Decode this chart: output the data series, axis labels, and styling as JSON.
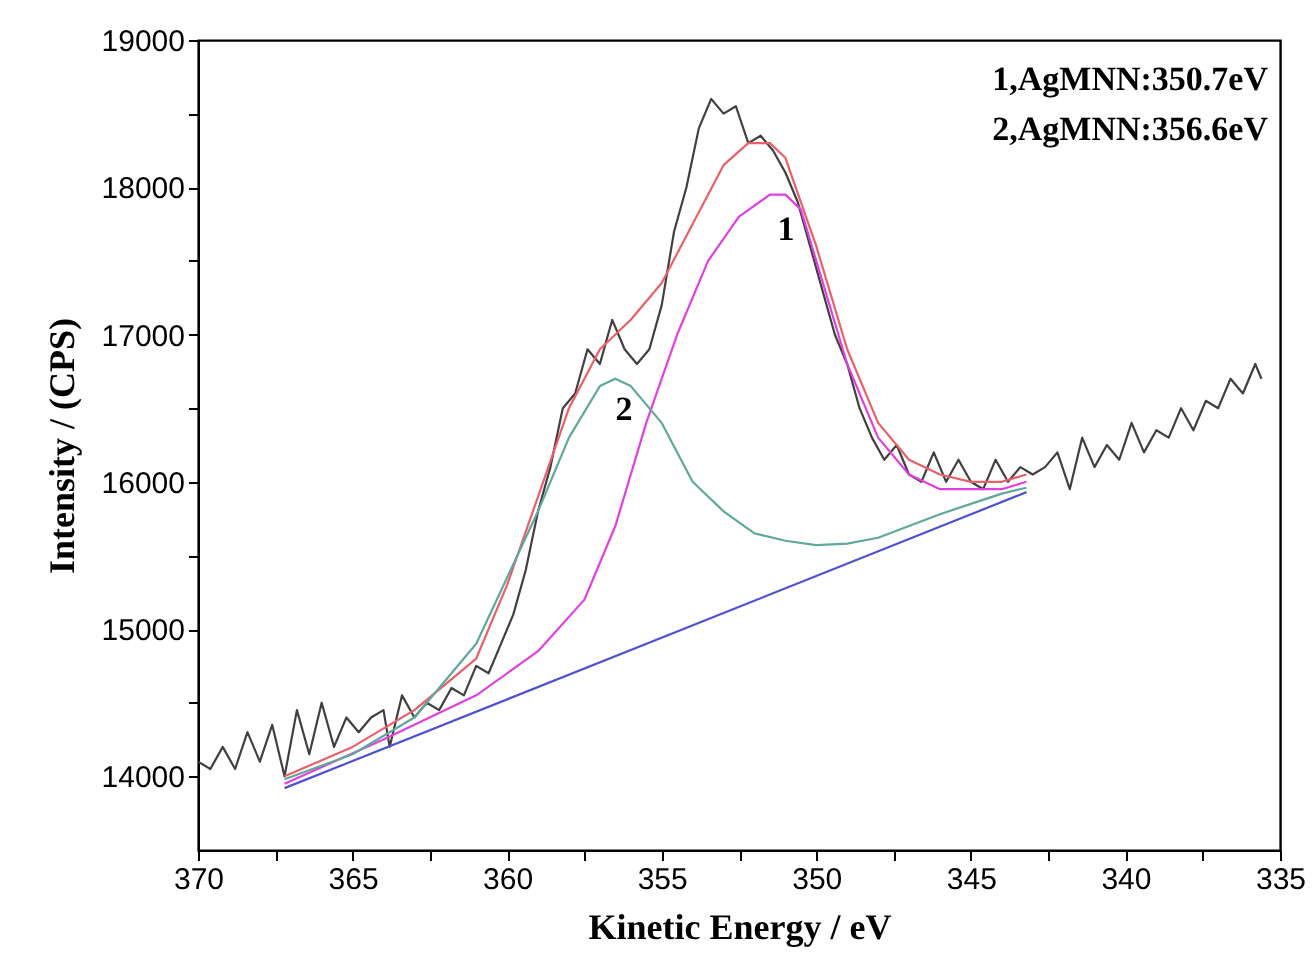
{
  "chart_data": {
    "type": "line",
    "xlabel": "Kinetic Energy / eV",
    "ylabel": "Intensity / (CPS)",
    "xlim": [
      370,
      335
    ],
    "ylim": [
      13500,
      19000
    ],
    "xticks": [
      370,
      {
        "value": 367.5,
        "label": null
      },
      365,
      {
        "value": 362.5,
        "label": null
      },
      360,
      {
        "value": 357.5,
        "label": null
      },
      355,
      {
        "value": 352.5,
        "label": null
      },
      350,
      {
        "value": 347.5,
        "label": null
      },
      345,
      {
        "value": 342.5,
        "label": null
      },
      340,
      {
        "value": 337.5,
        "label": null
      },
      335
    ],
    "yticks": [
      14000,
      {
        "value": 14500,
        "label": null
      },
      15000,
      {
        "value": 15500,
        "label": null
      },
      16000,
      {
        "value": 16500,
        "label": null
      },
      17000,
      {
        "value": 17500,
        "label": null
      },
      18000,
      {
        "value": 18500,
        "label": null
      },
      19000
    ],
    "grid": false,
    "marker": "none",
    "line_style": "solid",
    "annotations": [
      "1,AgMNN:350.7eV",
      "2,AgMNN:356.6eV",
      "1",
      "2"
    ],
    "series": [
      {
        "color": "#404040",
        "x": [
          370,
          369.6,
          369.2,
          368.8,
          368.4,
          368,
          367.6,
          367.2,
          366.8,
          366.4,
          366,
          365.6,
          365.2,
          364.8,
          364.4,
          364,
          363.8,
          363.4,
          363,
          362.6,
          362.2,
          361.8,
          361.4,
          361,
          360.6,
          360.2,
          359.8,
          359.4,
          359,
          358.6,
          358.2,
          357.8,
          357.4,
          357,
          356.6,
          356.2,
          355.8,
          355.4,
          355,
          354.6,
          354.2,
          353.8,
          353.4,
          353,
          352.6,
          352.2,
          351.8,
          351.4,
          351,
          350.6,
          350.2,
          349.8,
          349.4,
          349,
          348.6,
          348.2,
          347.8,
          347.4,
          347,
          346.6,
          346.2,
          345.8,
          345.4,
          345,
          344.6,
          344.2,
          343.8,
          343.4,
          343,
          342.6,
          342.2,
          341.8,
          341.4,
          341,
          340.6,
          340.2,
          339.8,
          339.4,
          339,
          338.6,
          338.2,
          337.8,
          337.4,
          337,
          336.6,
          336.2,
          335.8,
          335.6
        ],
        "values": [
          14100,
          14050,
          14200,
          14050,
          14300,
          14100,
          14350,
          14000,
          14450,
          14150,
          14500,
          14200,
          14400,
          14300,
          14400,
          14450,
          14200,
          14550,
          14400,
          14500,
          14450,
          14600,
          14550,
          14750,
          14700,
          14900,
          15100,
          15400,
          15800,
          16100,
          16500,
          16600,
          16900,
          16800,
          17100,
          16900,
          16800,
          16900,
          17200,
          17700,
          18000,
          18400,
          18600,
          18500,
          18550,
          18300,
          18350,
          18250,
          18100,
          17900,
          17600,
          17300,
          17000,
          16800,
          16500,
          16300,
          16150,
          16250,
          16050,
          16000,
          16200,
          16000,
          16150,
          16000,
          15950,
          16150,
          16000,
          16100,
          16050,
          16100,
          16200,
          15950,
          16300,
          16100,
          16250,
          16150,
          16400,
          16200,
          16350,
          16300,
          16500,
          16350,
          16550,
          16500,
          16700,
          16600,
          16800,
          16700
        ]
      },
      {
        "color": "#e8606a",
        "x": [
          367.2,
          365,
          363,
          361,
          360,
          359,
          358,
          357,
          356,
          355,
          354,
          353,
          352.2,
          351.5,
          351,
          350,
          349,
          348,
          347,
          346,
          345,
          344,
          343.2
        ],
        "values": [
          14000,
          14200,
          14450,
          14800,
          15300,
          15900,
          16500,
          16900,
          17100,
          17350,
          17750,
          18150,
          18300,
          18300,
          18200,
          17600,
          16900,
          16400,
          16150,
          16050,
          16000,
          16000,
          16050
        ]
      },
      {
        "color": "#e040e0",
        "x": [
          367.2,
          364,
          361,
          359,
          357.5,
          356.5,
          355.5,
          354.5,
          353.5,
          352.5,
          351.5,
          351,
          350.5,
          350,
          349,
          348,
          347,
          346,
          345,
          344,
          343.2
        ],
        "values": [
          13950,
          14250,
          14550,
          14850,
          15200,
          15700,
          16400,
          17000,
          17500,
          17800,
          17950,
          17950,
          17850,
          17500,
          16800,
          16300,
          16050,
          15950,
          15950,
          15950,
          16000
        ]
      },
      {
        "color": "#5fa89a",
        "x": [
          367.2,
          365,
          363,
          361,
          359,
          358,
          357,
          356.5,
          356,
          355,
          354,
          353,
          352,
          351,
          350,
          349,
          348,
          347,
          346,
          345,
          344,
          343.2
        ],
        "values": [
          13980,
          14150,
          14400,
          14900,
          15800,
          16300,
          16650,
          16700,
          16650,
          16400,
          16000,
          15800,
          15650,
          15600,
          15570,
          15580,
          15620,
          15700,
          15780,
          15850,
          15920,
          15960
        ]
      },
      {
        "color": "#5050d0",
        "x": [
          367.2,
          343.2
        ],
        "values": [
          13920,
          15930
        ]
      }
    ]
  }
}
